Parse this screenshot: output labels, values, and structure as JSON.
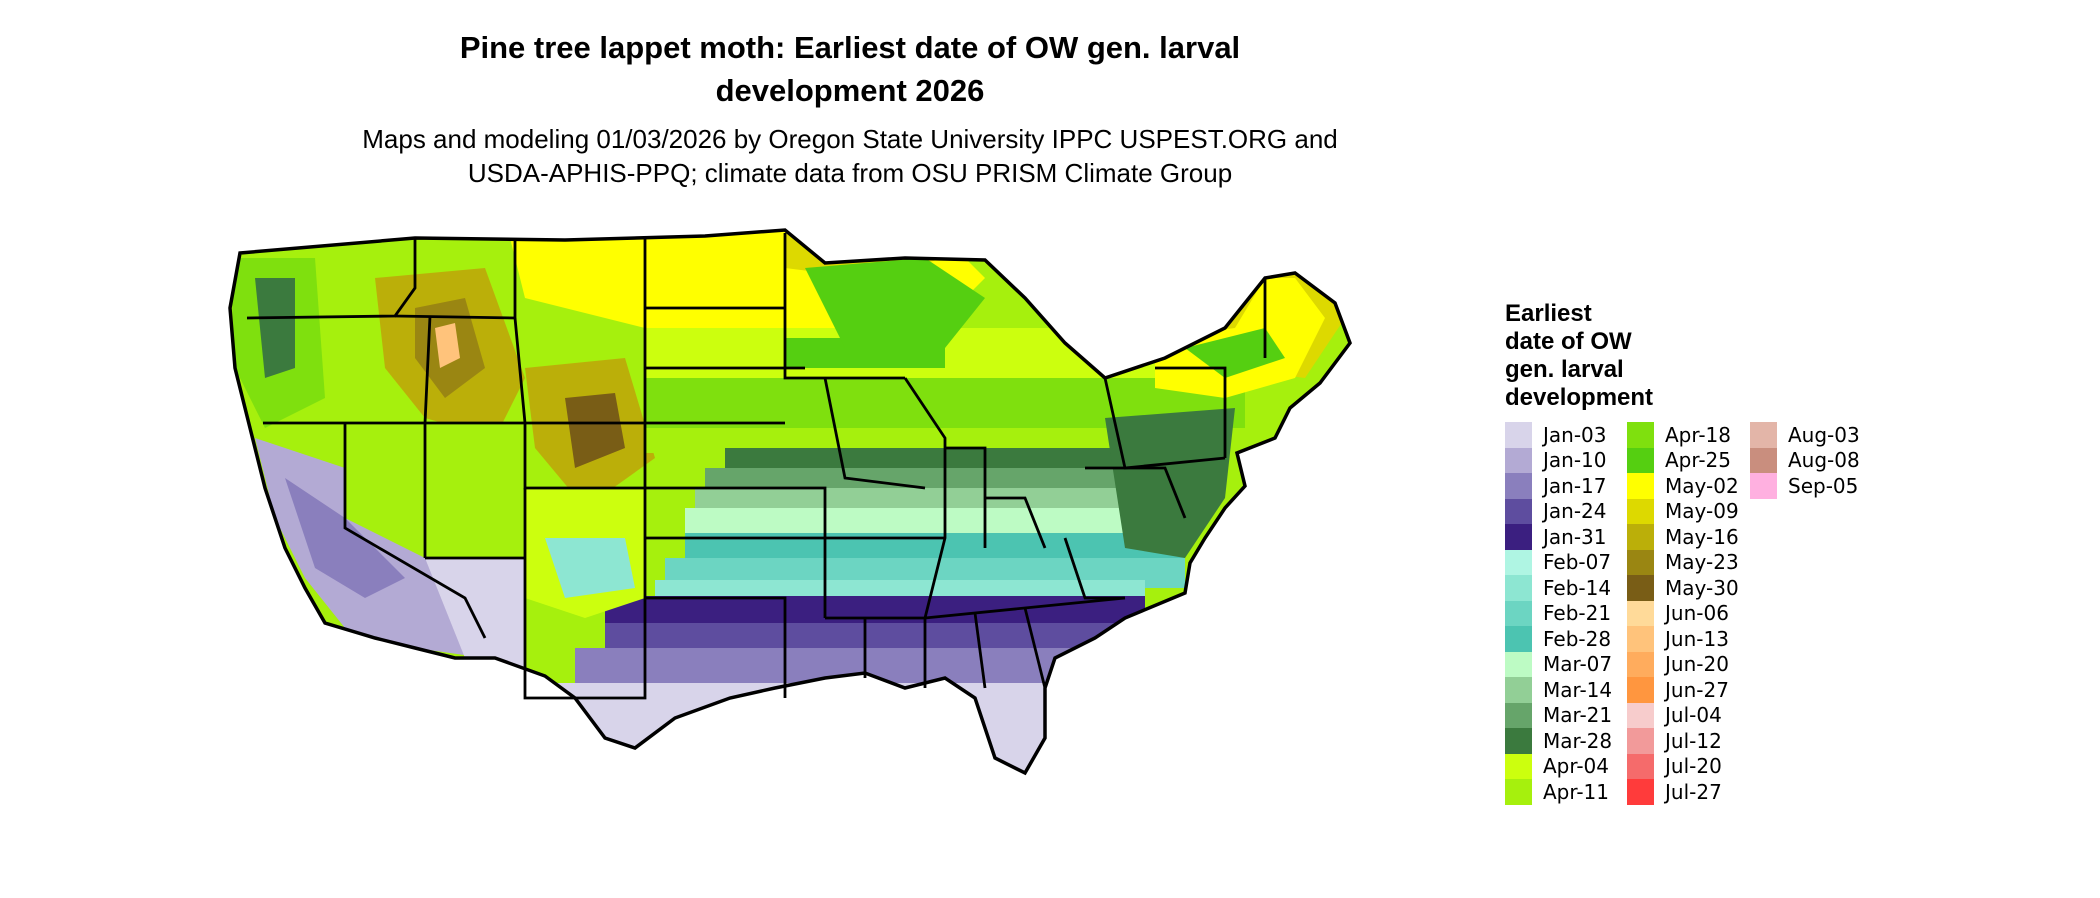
{
  "title_line1": "Pine tree lappet moth: Earliest date of OW gen. larval",
  "title_line2": "development 2026",
  "subtitle_line1": "Maps and modeling 01/03/2026 by Oregon State University IPPC USPEST.ORG and",
  "subtitle_line2": "USDA-APHIS-PPQ; climate data from OSU PRISM Climate Group",
  "legend": {
    "title_lines": [
      "Earliest",
      "date of OW",
      "gen. larval",
      "development"
    ],
    "columns": [
      [
        {
          "label": "Jan-03",
          "color": "#d8d4ea"
        },
        {
          "label": "Jan-10",
          "color": "#b3aad4"
        },
        {
          "label": "Jan-17",
          "color": "#8a7fbd"
        },
        {
          "label": "Jan-24",
          "color": "#5e4d9f"
        },
        {
          "label": "Jan-31",
          "color": "#3b1f80"
        },
        {
          "label": "Feb-07",
          "color": "#aff5e3"
        },
        {
          "label": "Feb-14",
          "color": "#8de6d2"
        },
        {
          "label": "Feb-21",
          "color": "#6cd5c2"
        },
        {
          "label": "Feb-28",
          "color": "#4cc4b1"
        },
        {
          "label": "Mar-07",
          "color": "#bdfbc4"
        },
        {
          "label": "Mar-14",
          "color": "#92cf96"
        },
        {
          "label": "Mar-21",
          "color": "#66a56a"
        },
        {
          "label": "Mar-28",
          "color": "#3b7a3e"
        },
        {
          "label": "Apr-04",
          "color": "#ccff0e"
        },
        {
          "label": "Apr-11",
          "color": "#a6f00d"
        }
      ],
      [
        {
          "label": "Apr-18",
          "color": "#7fe00e"
        },
        {
          "label": "Apr-25",
          "color": "#55cf11"
        },
        {
          "label": "May-02",
          "color": "#ffff00"
        },
        {
          "label": "May-09",
          "color": "#ddd900"
        },
        {
          "label": "May-16",
          "color": "#bbaf09"
        },
        {
          "label": "May-23",
          "color": "#9a8612"
        },
        {
          "label": "May-30",
          "color": "#795d16"
        },
        {
          "label": "Jun-06",
          "color": "#ffda99"
        },
        {
          "label": "Jun-13",
          "color": "#ffc37b"
        },
        {
          "label": "Jun-20",
          "color": "#ffac5d"
        },
        {
          "label": "Jun-27",
          "color": "#ff963f"
        },
        {
          "label": "Jul-04",
          "color": "#f7cccc"
        },
        {
          "label": "Jul-12",
          "color": "#f29a9a"
        },
        {
          "label": "Jul-20",
          "color": "#f56b6b"
        },
        {
          "label": "Jul-27",
          "color": "#ff3b3b"
        }
      ],
      [
        {
          "label": "Aug-03",
          "color": "#e3b5a8"
        },
        {
          "label": "Aug-08",
          "color": "#c98e7e"
        },
        {
          "label": "Sep-05",
          "color": "#ffb0e0"
        }
      ]
    ]
  },
  "map_colors": {
    "border": "#000000",
    "north_bands": [
      "#ffff00",
      "#ddd900",
      "#bbaf09",
      "#9a8612",
      "#795d16",
      "#ffc37b"
    ],
    "mid_bands": [
      "#ccff0e",
      "#a6f00d",
      "#7fe00e",
      "#55cf11",
      "#3b7a3e",
      "#66a56a",
      "#92cf96",
      "#bdfbc4"
    ],
    "south_bands": [
      "#4cc4b1",
      "#6cd5c2",
      "#8de6d2",
      "#3b1f80",
      "#5e4d9f",
      "#8a7fbd",
      "#b3aad4",
      "#d8d4ea"
    ]
  }
}
